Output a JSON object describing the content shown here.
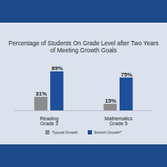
{
  "chart_data": {
    "type": "bar",
    "title": "Percentage of Students On Grade Level after Two Years of Meeting Growth Goals",
    "categories": [
      "Reading\nGrade 3",
      "Mathematics\nGrade 5"
    ],
    "series": [
      {
        "name": "Typical Growth",
        "color": "#8c8c8c",
        "values": [
          31,
          15
        ],
        "value_labels": [
          "31%",
          "15%"
        ]
      },
      {
        "name": "Stretch Growth*",
        "color": "#1e4f9a",
        "values": [
          89,
          75
        ],
        "value_labels": [
          "89%",
          "75%"
        ]
      }
    ],
    "ylim": [
      0,
      100
    ],
    "data_labels": true,
    "tick_labels": "x",
    "legend": "bottom"
  }
}
